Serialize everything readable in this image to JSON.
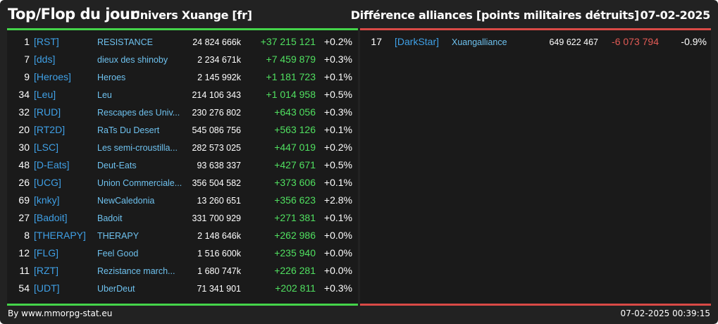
{
  "header": {
    "title": "Top/Flop du jour",
    "universe": "Univers Xuange [fr]",
    "subtitle": "Différence alliances [points militaires détruits]",
    "date": "07-02-2025"
  },
  "colors": {
    "background": "#222222",
    "panel": "#1a1a1a",
    "top_accent": "#44d44a",
    "flop_accent": "#d94a46",
    "tag": "#3fa0e6",
    "name": "#6ec1ee",
    "gain": "#50e060",
    "loss": "#e05a55"
  },
  "top": [
    {
      "rank": "1",
      "tag": "[RST]",
      "name": "RESISTANCE",
      "points": "24 824 666k",
      "diff": "+37 215 121",
      "pct": "+0.2%"
    },
    {
      "rank": "7",
      "tag": "[dds]",
      "name": "dieux des shinoby",
      "points": "2 234 671k",
      "diff": "+7 459 879",
      "pct": "+0.3%"
    },
    {
      "rank": "9",
      "tag": "[Heroes]",
      "name": "Heroes",
      "points": "2 145 992k",
      "diff": "+1 181 723",
      "pct": "+0.1%"
    },
    {
      "rank": "34",
      "tag": "[Leu]",
      "name": "Leu",
      "points": "214 106 343",
      "diff": "+1 014 958",
      "pct": "+0.5%"
    },
    {
      "rank": "32",
      "tag": "[RUD]",
      "name": "Rescapes des Univ...",
      "points": "230 276 802",
      "diff": "+643 056",
      "pct": "+0.3%"
    },
    {
      "rank": "20",
      "tag": "[RT2D]",
      "name": "RaTs Du Desert",
      "points": "545 086 756",
      "diff": "+563 126",
      "pct": "+0.1%"
    },
    {
      "rank": "30",
      "tag": "[LSC]",
      "name": "Les semi-croustilla...",
      "points": "282 573 025",
      "diff": "+447 019",
      "pct": "+0.2%"
    },
    {
      "rank": "48",
      "tag": "[D-Eats]",
      "name": "Deut-Eats",
      "points": "93 638 337",
      "diff": "+427 671",
      "pct": "+0.5%"
    },
    {
      "rank": "26",
      "tag": "[UCG]",
      "name": "Union Commerciale...",
      "points": "356 504 582",
      "diff": "+373 606",
      "pct": "+0.1%"
    },
    {
      "rank": "69",
      "tag": "[knky]",
      "name": "NewCaledonia",
      "points": "13 260 651",
      "diff": "+356 623",
      "pct": "+2.8%"
    },
    {
      "rank": "27",
      "tag": "[Badoit]",
      "name": "Badoit",
      "points": "331 700 929",
      "diff": "+271 381",
      "pct": "+0.1%"
    },
    {
      "rank": "8",
      "tag": "[THERAPY]",
      "name": "THERAPY",
      "points": "2 148 646k",
      "diff": "+262 986",
      "pct": "+0.0%"
    },
    {
      "rank": "12",
      "tag": "[FLG]",
      "name": "Feel Good",
      "points": "1 516 600k",
      "diff": "+235 940",
      "pct": "+0.0%"
    },
    {
      "rank": "11",
      "tag": "[RZT]",
      "name": "Rezistance march...",
      "points": "1 680 747k",
      "diff": "+226 281",
      "pct": "+0.0%"
    },
    {
      "rank": "54",
      "tag": "[UDT]",
      "name": "UberDeut",
      "points": "71 341 901",
      "diff": "+202 811",
      "pct": "+0.3%"
    }
  ],
  "flop": [
    {
      "rank": "17",
      "tag": "[DarkStar]",
      "name": "Xuangalliance",
      "points": "649 622 467",
      "diff": "-6 073 794",
      "pct": "-0.9%"
    }
  ],
  "footer": {
    "source": "By www.mmorpg-stat.eu",
    "timestamp": "07-02-2025 00:39:15"
  }
}
